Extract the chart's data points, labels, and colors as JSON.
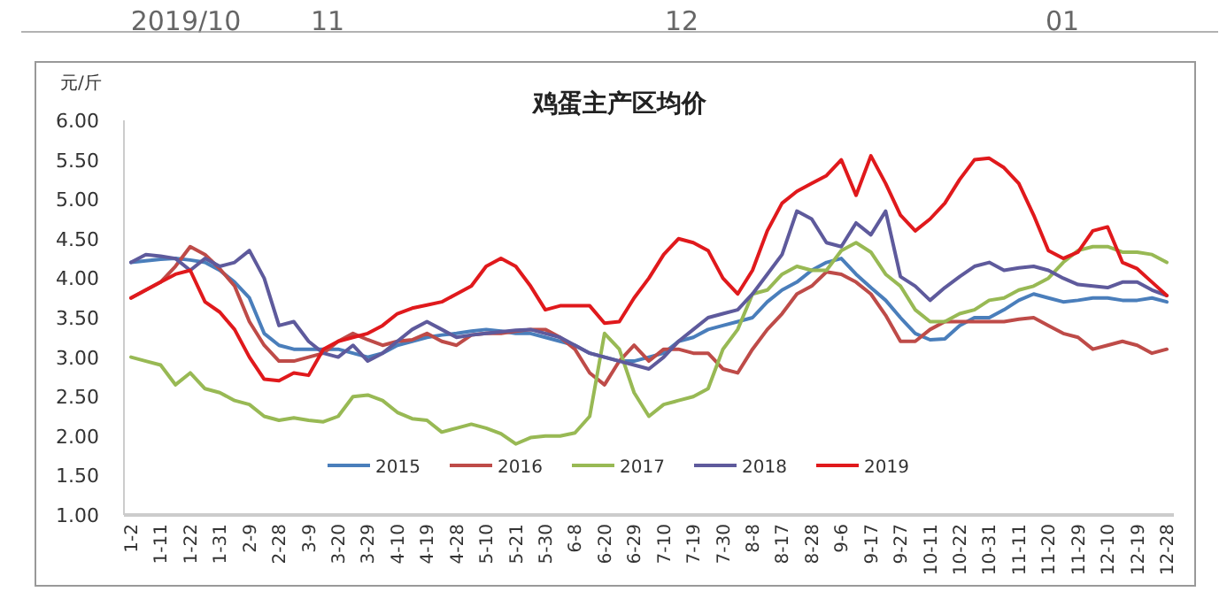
{
  "chart_data": {
    "type": "line",
    "title": "鸡蛋主产区均价",
    "ylabel": "元/斤",
    "annotations": [
      "2019/10",
      "11",
      "12",
      "01"
    ],
    "categories": [
      "1-2",
      null,
      "1-11",
      null,
      "1-22",
      null,
      "1-31",
      null,
      "2-9",
      null,
      "2-28",
      null,
      "3-9",
      null,
      "3-20",
      null,
      "3-29",
      null,
      "4-10",
      null,
      "4-19",
      null,
      "4-28",
      null,
      "5-10",
      null,
      "5-21",
      null,
      "5-30",
      null,
      "6-8",
      null,
      "6-20",
      null,
      "6-29",
      null,
      "7-10",
      null,
      "7-19",
      null,
      "7-30",
      null,
      "8-8",
      null,
      "8-17",
      null,
      "8-28",
      null,
      "9-6",
      null,
      "9-17",
      null,
      "9-27",
      null,
      "10-11",
      null,
      "10-22",
      null,
      "10-31",
      null,
      "11-11",
      null,
      "11-20",
      null,
      "11-29",
      null,
      "12-10",
      null,
      "12-19",
      null,
      "12-28"
    ],
    "ylim": [
      1,
      6
    ],
    "yticks": [
      {
        "value": 1,
        "label": "1.00"
      },
      {
        "value": 1.5,
        "label": "1.50"
      },
      {
        "value": 2,
        "label": "2.00"
      },
      {
        "value": 2.5,
        "label": "2.50"
      },
      {
        "value": 3,
        "label": "3.00"
      },
      {
        "value": 3.5,
        "label": "3.50"
      },
      {
        "value": 4,
        "label": "4.00"
      },
      {
        "value": 4.5,
        "label": "4.50"
      },
      {
        "value": 5,
        "label": "5.00"
      },
      {
        "value": 5.5,
        "label": "5.50"
      },
      {
        "value": 6,
        "label": "6.00"
      }
    ],
    "legend": "bottom",
    "grid": false,
    "marker": "none",
    "line_style": "solid",
    "series": [
      {
        "name": "2015",
        "color": "#4a7ebb",
        "values": [
          4.2,
          4.22,
          4.24,
          4.25,
          4.23,
          4.2,
          4.1,
          3.95,
          3.75,
          3.3,
          3.15,
          3.1,
          3.1,
          3.1,
          3.1,
          3.05,
          3.0,
          3.05,
          3.15,
          3.2,
          3.25,
          3.28,
          3.3,
          3.33,
          3.35,
          3.33,
          3.3,
          3.3,
          3.25,
          3.2,
          3.15,
          3.05,
          3.0,
          2.95,
          2.95,
          3.0,
          3.05,
          3.2,
          3.25,
          3.35,
          3.4,
          3.45,
          3.5,
          3.7,
          3.85,
          3.95,
          4.1,
          4.2,
          4.25,
          4.05,
          3.88,
          3.72,
          3.5,
          3.3,
          3.22,
          3.23,
          3.4,
          3.5,
          3.5,
          3.6,
          3.72,
          3.8,
          3.75,
          3.7,
          3.72,
          3.75,
          3.75,
          3.72,
          3.72,
          3.75,
          3.7
        ]
      },
      {
        "name": "2016",
        "color": "#be4b48",
        "values": [
          3.75,
          3.85,
          3.95,
          4.15,
          4.4,
          4.3,
          4.12,
          3.9,
          3.45,
          3.15,
          2.95,
          2.95,
          3.0,
          3.05,
          3.2,
          3.3,
          3.22,
          3.15,
          3.2,
          3.22,
          3.3,
          3.2,
          3.15,
          3.28,
          3.3,
          3.3,
          3.33,
          3.35,
          3.35,
          3.25,
          3.1,
          2.8,
          2.65,
          2.95,
          3.15,
          2.95,
          3.1,
          3.1,
          3.05,
          3.05,
          2.85,
          2.8,
          3.1,
          3.35,
          3.55,
          3.8,
          3.9,
          4.08,
          4.05,
          3.95,
          3.8,
          3.53,
          3.2,
          3.2,
          3.35,
          3.45,
          3.45,
          3.45,
          3.45,
          3.45,
          3.48,
          3.5,
          3.4,
          3.3,
          3.25,
          3.1,
          3.15,
          3.2,
          3.15,
          3.05,
          3.1
        ]
      },
      {
        "name": "2017",
        "color": "#98b954",
        "values": [
          3.0,
          2.95,
          2.9,
          2.65,
          2.8,
          2.6,
          2.55,
          2.45,
          2.4,
          2.25,
          2.2,
          2.23,
          2.2,
          2.18,
          2.25,
          2.5,
          2.52,
          2.45,
          2.3,
          2.22,
          2.2,
          2.05,
          2.1,
          2.15,
          2.1,
          2.03,
          1.9,
          1.98,
          2.0,
          2.0,
          2.04,
          2.25,
          3.3,
          3.1,
          2.55,
          2.25,
          2.4,
          2.45,
          2.5,
          2.6,
          3.1,
          3.35,
          3.8,
          3.85,
          4.05,
          4.15,
          4.1,
          4.1,
          4.35,
          4.45,
          4.33,
          4.05,
          3.9,
          3.6,
          3.45,
          3.45,
          3.55,
          3.6,
          3.72,
          3.75,
          3.85,
          3.9,
          4.0,
          4.2,
          4.35,
          4.4,
          4.4,
          4.33,
          4.33,
          4.3,
          4.2
        ]
      },
      {
        "name": "2018",
        "color": "#5e5a9c",
        "values": [
          4.2,
          4.3,
          4.28,
          4.25,
          4.1,
          4.25,
          4.15,
          4.2,
          4.35,
          4.0,
          3.4,
          3.45,
          3.2,
          3.05,
          3.0,
          3.15,
          2.95,
          3.05,
          3.2,
          3.35,
          3.45,
          3.35,
          3.25,
          3.28,
          3.3,
          3.32,
          3.34,
          3.35,
          3.3,
          3.25,
          3.15,
          3.05,
          3.0,
          2.95,
          2.9,
          2.85,
          3.0,
          3.2,
          3.35,
          3.5,
          3.55,
          3.6,
          3.8,
          4.05,
          4.3,
          4.85,
          4.75,
          4.45,
          4.4,
          4.7,
          4.55,
          4.85,
          4.02,
          3.9,
          3.72,
          3.88,
          4.02,
          4.15,
          4.2,
          4.1,
          4.13,
          4.15,
          4.1,
          4.0,
          3.92,
          3.9,
          3.88,
          3.95,
          3.95,
          3.85,
          3.78
        ]
      },
      {
        "name": "2019",
        "color": "#e0191c",
        "values": [
          3.75,
          3.85,
          3.95,
          4.05,
          4.1,
          3.7,
          3.57,
          3.35,
          3.0,
          2.72,
          2.7,
          2.8,
          2.77,
          3.1,
          3.2,
          3.25,
          3.3,
          3.4,
          3.55,
          3.62,
          3.66,
          3.7,
          3.8,
          3.9,
          4.15,
          4.25,
          4.15,
          3.9,
          3.6,
          3.65,
          3.65,
          3.65,
          3.43,
          3.45,
          3.75,
          4.0,
          4.3,
          4.5,
          4.45,
          4.35,
          4.0,
          3.8,
          4.1,
          4.6,
          4.95,
          5.1,
          5.2,
          5.3,
          5.5,
          5.05,
          5.55,
          5.2,
          4.8,
          4.6,
          4.75,
          4.95,
          5.25,
          5.5,
          5.52,
          5.4,
          5.2,
          4.8,
          4.35,
          4.25,
          4.33,
          4.6,
          4.65,
          4.2,
          4.12,
          3.95,
          3.78
        ]
      }
    ]
  }
}
